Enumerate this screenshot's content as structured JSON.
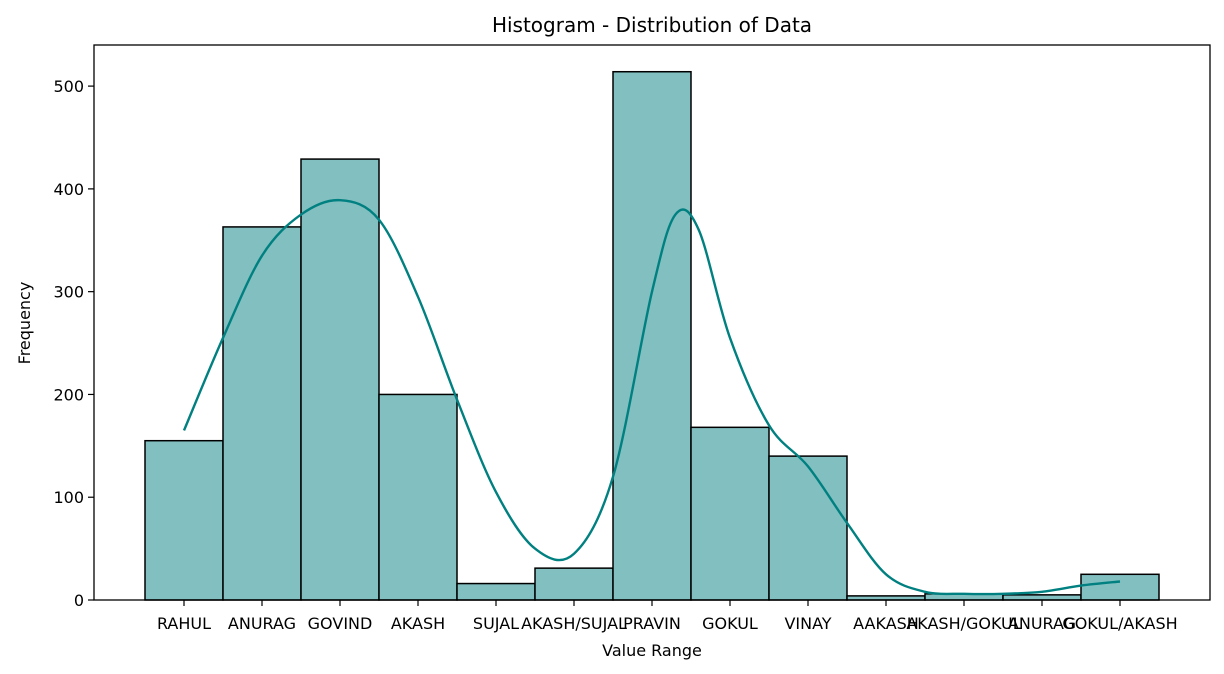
{
  "chart_data": {
    "type": "bar",
    "title": "Histogram - Distribution of Data",
    "xlabel": "Value Range",
    "ylabel": "Frequency",
    "categories": [
      "RAHUL",
      "ANURAG",
      "GOVIND",
      "AKASH",
      "SUJAL",
      "AKASH/SUJAL",
      "PRAVIN",
      "GOKUL",
      "VINAY",
      "AAKASH",
      "AKASH/GOKUL",
      "ANURAG",
      "GOKUL/AKASH"
    ],
    "values": [
      155,
      363,
      429,
      200,
      16,
      31,
      514,
      168,
      140,
      4,
      6,
      5,
      25
    ],
    "ylim": [
      0,
      540
    ],
    "yticks": [
      0,
      100,
      200,
      300,
      400,
      500
    ],
    "kde": [
      [
        0.0,
        165
      ],
      [
        0.5,
        255
      ],
      [
        1.0,
        335
      ],
      [
        1.5,
        375
      ],
      [
        2.0,
        389
      ],
      [
        2.5,
        370
      ],
      [
        3.0,
        295
      ],
      [
        3.5,
        195
      ],
      [
        4.0,
        105
      ],
      [
        4.5,
        50
      ],
      [
        5.0,
        45
      ],
      [
        5.5,
        120
      ],
      [
        6.0,
        300
      ],
      [
        6.3,
        375
      ],
      [
        6.6,
        360
      ],
      [
        7.0,
        255
      ],
      [
        7.5,
        170
      ],
      [
        8.0,
        130
      ],
      [
        8.5,
        75
      ],
      [
        9.0,
        25
      ],
      [
        9.5,
        8
      ],
      [
        10.0,
        6
      ],
      [
        10.5,
        6
      ],
      [
        11.0,
        8
      ],
      [
        11.5,
        14
      ],
      [
        12.0,
        18
      ]
    ],
    "bar_color": "#82bfc0",
    "kde_color": "#008080",
    "grid": false
  }
}
